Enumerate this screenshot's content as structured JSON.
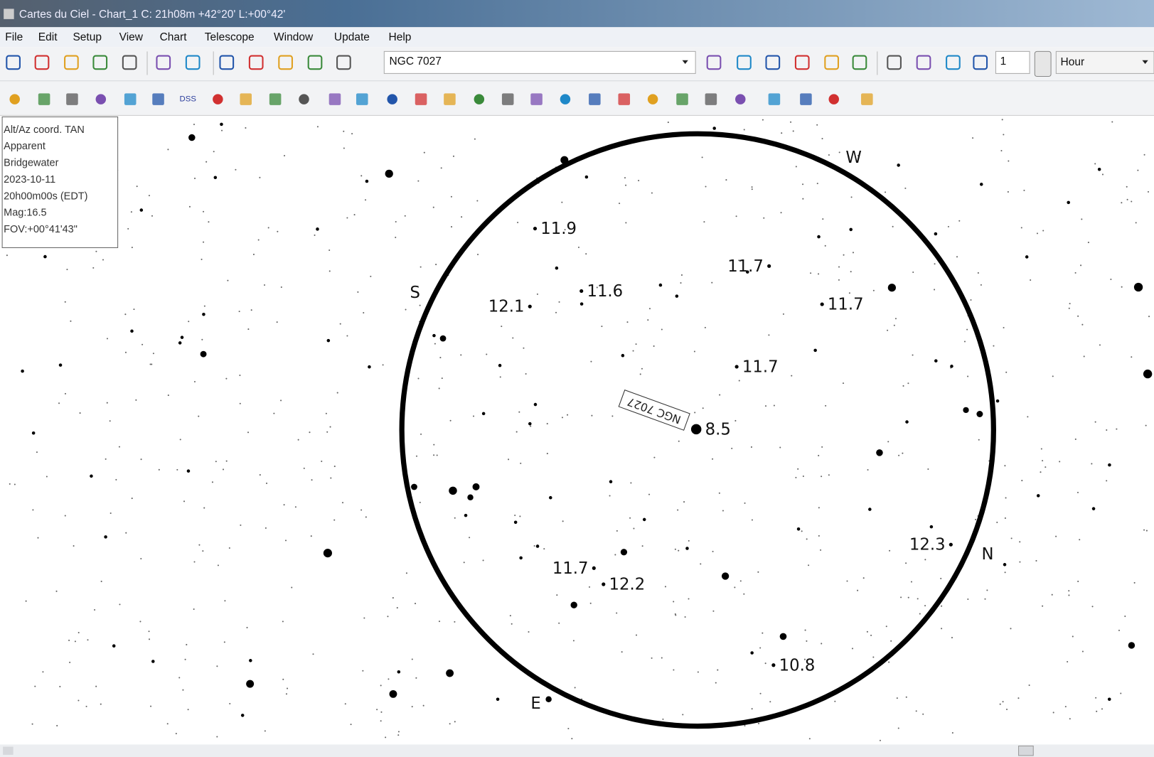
{
  "window": {
    "title": "Cartes du Ciel - Chart_1 C: 21h08m +42°20' L:+00°42'"
  },
  "menu": [
    "File",
    "Edit",
    "Setup",
    "View",
    "Chart",
    "Telescope",
    "Window",
    "Update",
    "Help"
  ],
  "toolbar": {
    "search": "NGC 7027",
    "step": "1",
    "unit": "Hour",
    "dss": "DSS"
  },
  "info_panel": [
    "Alt/Az coord. TAN",
    "Apparent",
    "Bridgewater",
    "2023-10-11",
    "20h00m00s (EDT)",
    "Mag:16.5",
    "FOV:+00°41'43\""
  ],
  "chart": {
    "compass": [
      "W",
      "S",
      "N",
      "E"
    ],
    "object_label": "NGC 7027",
    "stars": [
      "11.9",
      "11.7",
      "11.6",
      "12.1",
      "11.7",
      "11.7",
      "8.5",
      "12.3",
      "11.7",
      "12.2",
      "10.8"
    ]
  }
}
